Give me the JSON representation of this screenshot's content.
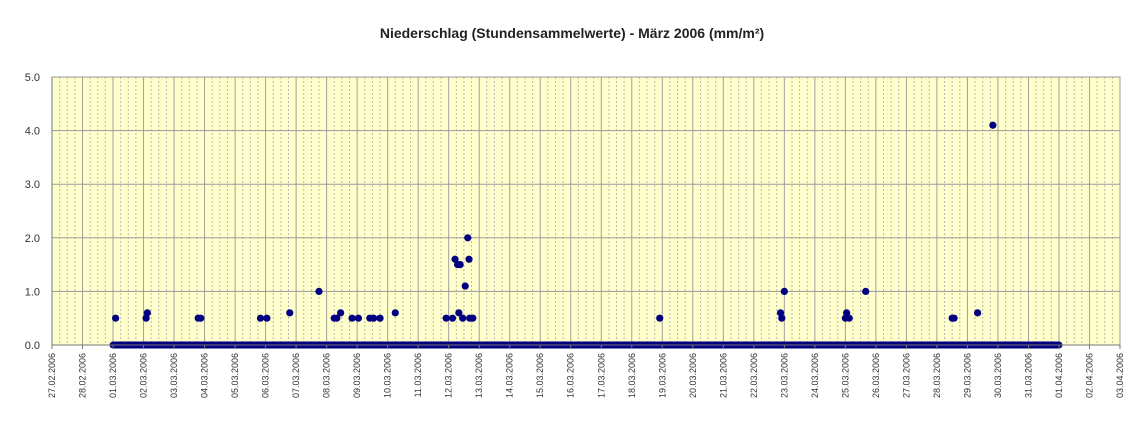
{
  "chart_data": {
    "type": "scatter",
    "title": "Niederschlag (Stundensammelwerte) - März 2006 (mm/m²)",
    "xlabel": "",
    "ylabel": "",
    "ylim": [
      0,
      5
    ],
    "yticks": [
      "0.0",
      "1.0",
      "2.0",
      "3.0",
      "4.0",
      "5.0"
    ],
    "xlim": [
      "2006-02-27",
      "2006-04-03"
    ],
    "xticks": [
      "27.02.2006",
      "28.02.2006",
      "01.03.2006",
      "02.03.2006",
      "03.03.2006",
      "04.03.2006",
      "05.03.2006",
      "06.03.2006",
      "07.03.2006",
      "08.03.2006",
      "09.03.2006",
      "10.03.2006",
      "11.03.2006",
      "12.03.2006",
      "13.03.2006",
      "14.03.2006",
      "15.03.2006",
      "16.03.2006",
      "17.03.2006",
      "18.03.2006",
      "19.03.2006",
      "20.03.2006",
      "21.03.2006",
      "22.03.2006",
      "23.03.2006",
      "24.03.2006",
      "25.03.2006",
      "26.03.2006",
      "27.03.2006",
      "28.03.2006",
      "29.03.2006",
      "30.03.2006",
      "31.03.2006",
      "01.04.2006",
      "02.04.2006",
      "03.04.2006"
    ],
    "grid": true,
    "background_color": "#FFFFCC",
    "marker_color": "#000080",
    "zero_band": {
      "x_start": "2006-03-01 00:00",
      "x_end": "2006-04-01 00:00",
      "y": 0
    },
    "series": [
      {
        "points": [
          {
            "x": "2006-03-01 02:00",
            "y": 0.5
          },
          {
            "x": "2006-03-02 02:00",
            "y": 0.5
          },
          {
            "x": "2006-03-02 03:00",
            "y": 0.6
          },
          {
            "x": "2006-03-03 19:00",
            "y": 0.5
          },
          {
            "x": "2006-03-03 21:00",
            "y": 0.5
          },
          {
            "x": "2006-03-05 20:00",
            "y": 0.5
          },
          {
            "x": "2006-03-06 01:00",
            "y": 0.5
          },
          {
            "x": "2006-03-06 19:00",
            "y": 0.6
          },
          {
            "x": "2006-03-07 18:00",
            "y": 1.0
          },
          {
            "x": "2006-03-08 06:00",
            "y": 0.5
          },
          {
            "x": "2006-03-08 08:00",
            "y": 0.5
          },
          {
            "x": "2006-03-08 11:00",
            "y": 0.6
          },
          {
            "x": "2006-03-08 20:00",
            "y": 0.5
          },
          {
            "x": "2006-03-09 01:00",
            "y": 0.5
          },
          {
            "x": "2006-03-09 10:00",
            "y": 0.5
          },
          {
            "x": "2006-03-09 13:00",
            "y": 0.5
          },
          {
            "x": "2006-03-09 18:00",
            "y": 0.5
          },
          {
            "x": "2006-03-10 06:00",
            "y": 0.6
          },
          {
            "x": "2006-03-11 22:00",
            "y": 0.5
          },
          {
            "x": "2006-03-12 03:00",
            "y": 0.5
          },
          {
            "x": "2006-03-12 05:00",
            "y": 1.6
          },
          {
            "x": "2006-03-12 07:00",
            "y": 1.5
          },
          {
            "x": "2006-03-12 08:00",
            "y": 0.6
          },
          {
            "x": "2006-03-12 09:00",
            "y": 1.5
          },
          {
            "x": "2006-03-12 11:00",
            "y": 0.5
          },
          {
            "x": "2006-03-12 13:00",
            "y": 1.1
          },
          {
            "x": "2006-03-12 15:00",
            "y": 2.0
          },
          {
            "x": "2006-03-12 16:00",
            "y": 1.6
          },
          {
            "x": "2006-03-12 16:30",
            "y": 0.5
          },
          {
            "x": "2006-03-12 19:00",
            "y": 0.5
          },
          {
            "x": "2006-03-18 22:00",
            "y": 0.5
          },
          {
            "x": "2006-03-22 21:00",
            "y": 0.6
          },
          {
            "x": "2006-03-22 22:00",
            "y": 0.5
          },
          {
            "x": "2006-03-23 00:00",
            "y": 1.0
          },
          {
            "x": "2006-03-25 00:00",
            "y": 0.5
          },
          {
            "x": "2006-03-25 01:00",
            "y": 0.6
          },
          {
            "x": "2006-03-25 03:00",
            "y": 0.5
          },
          {
            "x": "2006-03-25 16:00",
            "y": 1.0
          },
          {
            "x": "2006-03-28 12:00",
            "y": 0.5
          },
          {
            "x": "2006-03-28 13:30",
            "y": 0.5
          },
          {
            "x": "2006-03-29 08:00",
            "y": 0.6
          },
          {
            "x": "2006-03-29 20:00",
            "y": 4.1
          }
        ]
      }
    ]
  }
}
